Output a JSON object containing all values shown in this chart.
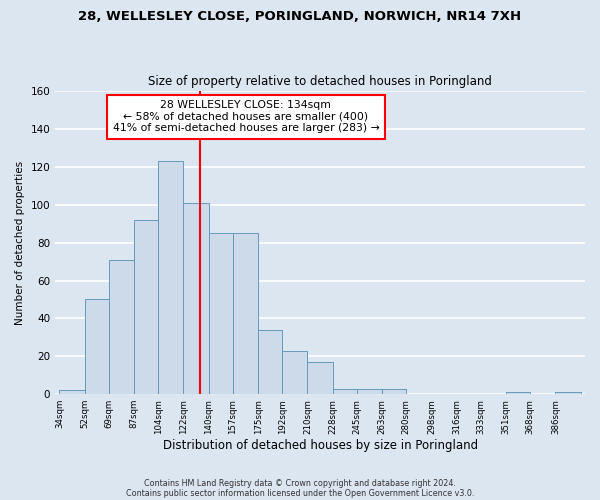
{
  "title1": "28, WELLESLEY CLOSE, PORINGLAND, NORWICH, NR14 7XH",
  "title2": "Size of property relative to detached houses in Poringland",
  "xlabel": "Distribution of detached houses by size in Poringland",
  "ylabel": "Number of detached properties",
  "bin_labels": [
    "34sqm",
    "52sqm",
    "69sqm",
    "87sqm",
    "104sqm",
    "122sqm",
    "140sqm",
    "157sqm",
    "175sqm",
    "192sqm",
    "210sqm",
    "228sqm",
    "245sqm",
    "263sqm",
    "280sqm",
    "298sqm",
    "316sqm",
    "333sqm",
    "351sqm",
    "368sqm",
    "386sqm"
  ],
  "bar_heights": [
    2,
    50,
    71,
    92,
    123,
    101,
    85,
    85,
    34,
    23,
    17,
    3,
    3,
    3,
    0,
    0,
    0,
    0,
    1,
    0,
    1
  ],
  "bin_edges": [
    34,
    52,
    69,
    87,
    104,
    122,
    140,
    157,
    175,
    192,
    210,
    228,
    245,
    263,
    280,
    298,
    316,
    333,
    351,
    368,
    386
  ],
  "bar_color": "#ccdaea",
  "bar_edge_color": "#6699bb",
  "vline_x": 134,
  "vline_color": "red",
  "ylim": [
    0,
    160
  ],
  "yticks": [
    0,
    20,
    40,
    60,
    80,
    100,
    120,
    140,
    160
  ],
  "annotation_text": "28 WELLESLEY CLOSE: 134sqm\n← 58% of detached houses are smaller (400)\n41% of semi-detached houses are larger (283) →",
  "annotation_box_color": "#ffffff",
  "annotation_border_color": "red",
  "footer1": "Contains HM Land Registry data © Crown copyright and database right 2024.",
  "footer2": "Contains public sector information licensed under the Open Government Licence v3.0.",
  "background_color": "#dce6f0",
  "grid_color": "#ffffff",
  "title_fontsize": 9.5,
  "subtitle_fontsize": 8.5
}
